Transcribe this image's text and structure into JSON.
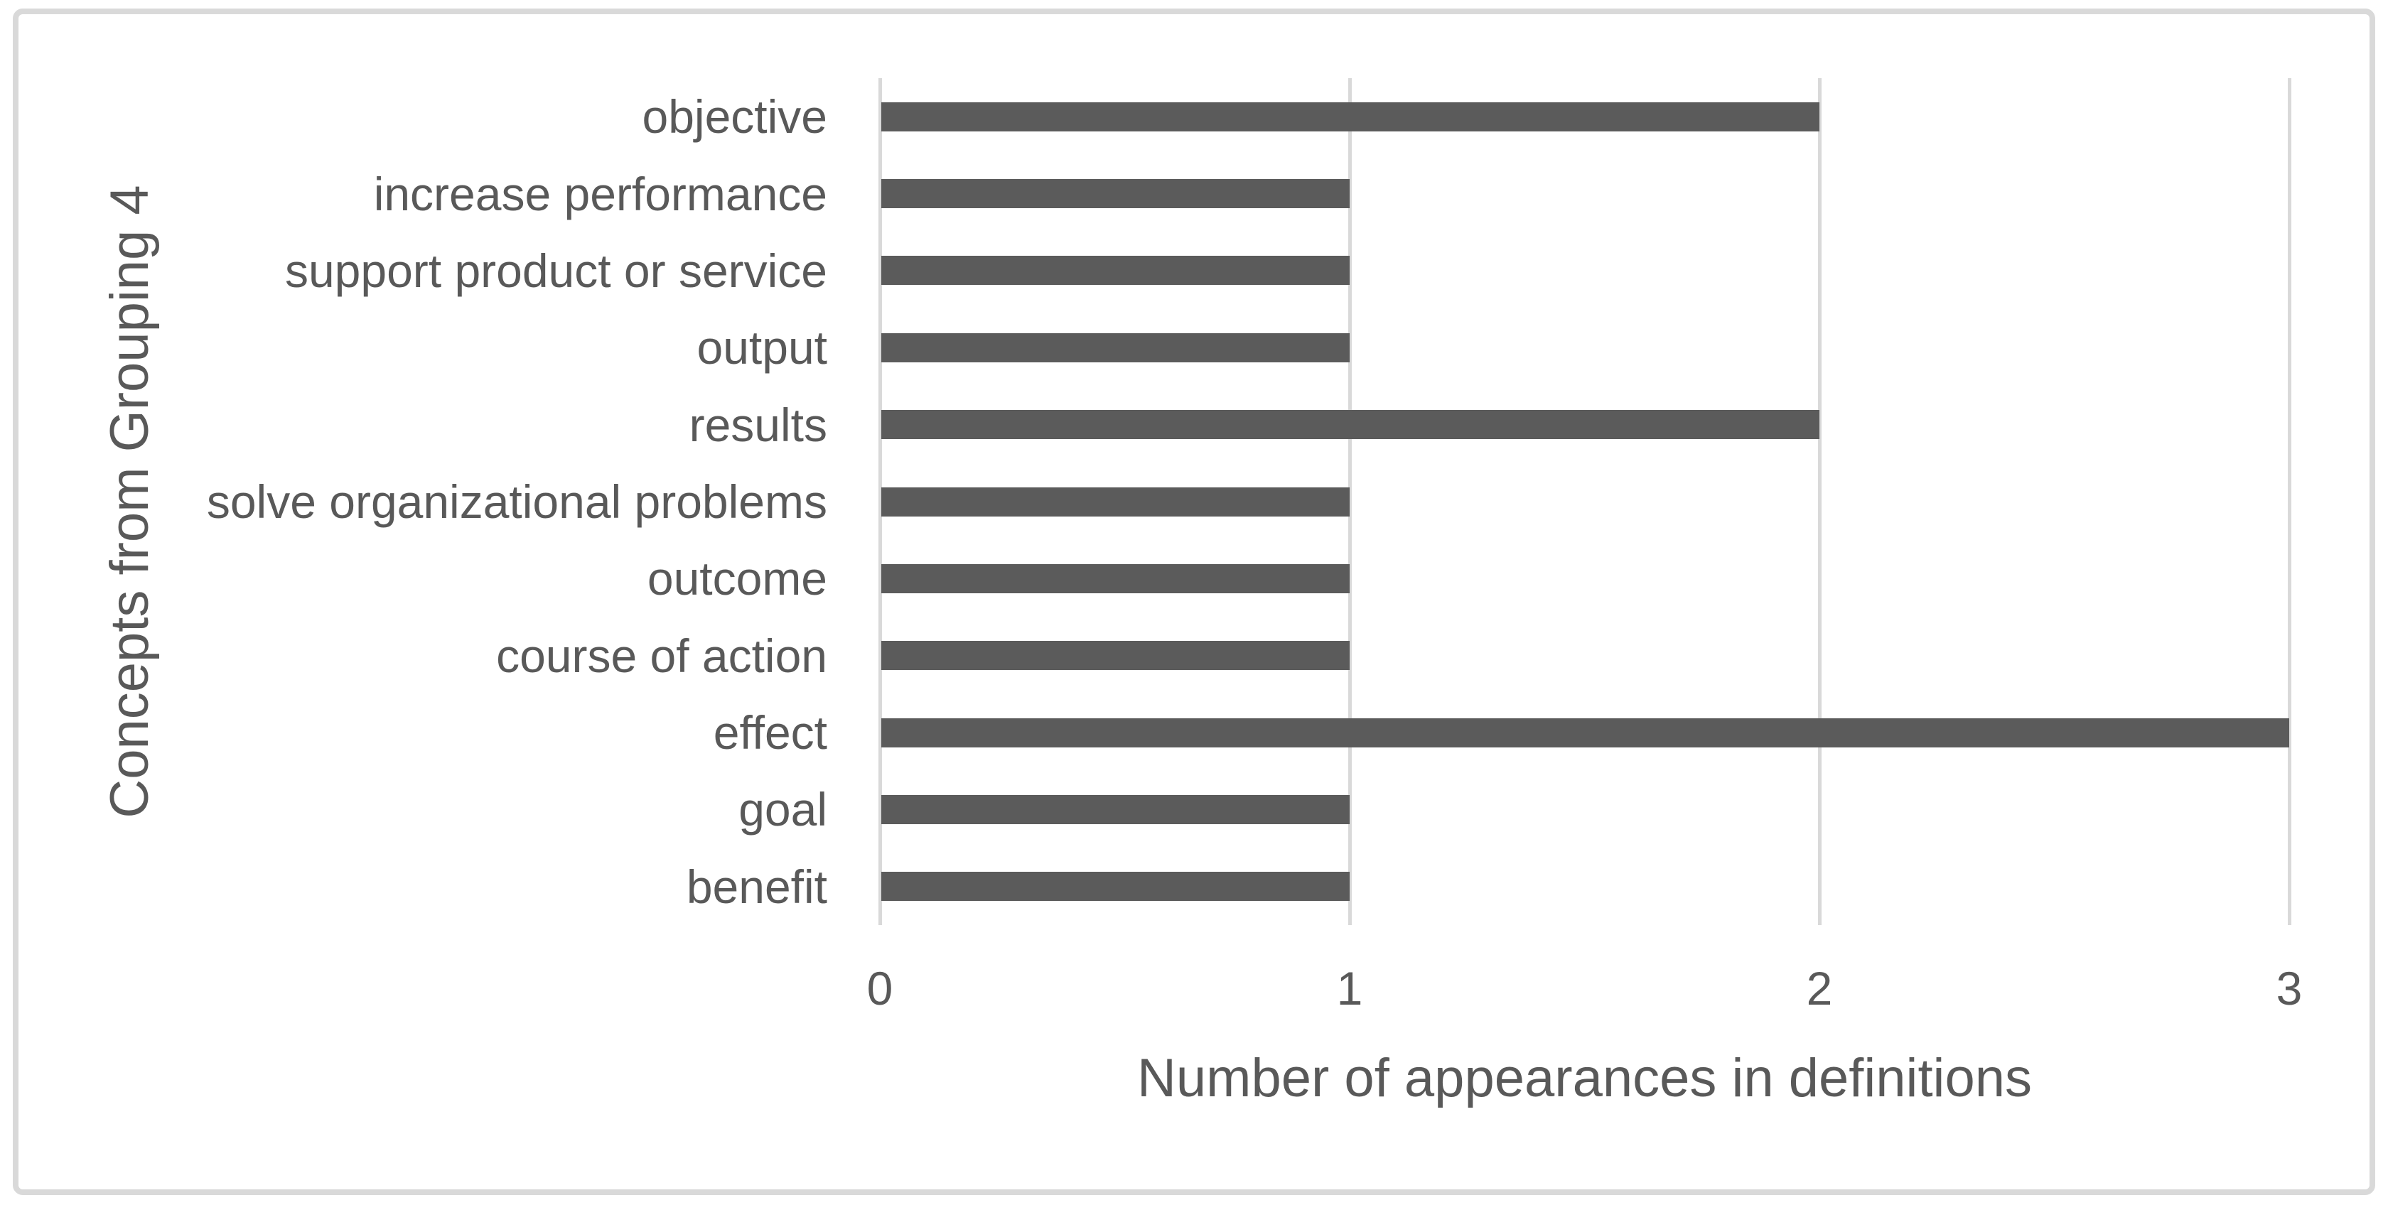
{
  "figure": {
    "background": "#ffffff",
    "border_color": "#d9d9d9"
  },
  "chart_data": {
    "type": "bar",
    "orientation": "horizontal",
    "categories": [
      "objective",
      "increase performance",
      "support product or service",
      "output",
      "results",
      "solve organizational problems",
      "outcome",
      "course of action",
      "effect",
      "goal",
      "benefit"
    ],
    "values": [
      2,
      1,
      1,
      1,
      2,
      1,
      1,
      1,
      3,
      1,
      1
    ],
    "xlabel": "Number of appearances in definitions",
    "ylabel": "Concepts from Grouping 4",
    "xlim": [
      0,
      3
    ],
    "xticks": [
      "0",
      "1",
      "2",
      "3"
    ],
    "grid": "vertical-gridlines-on",
    "legend": "none",
    "bar_color": "#5b5b5b",
    "gridline_color": "#d9d9d9",
    "text_color": "#595959"
  }
}
